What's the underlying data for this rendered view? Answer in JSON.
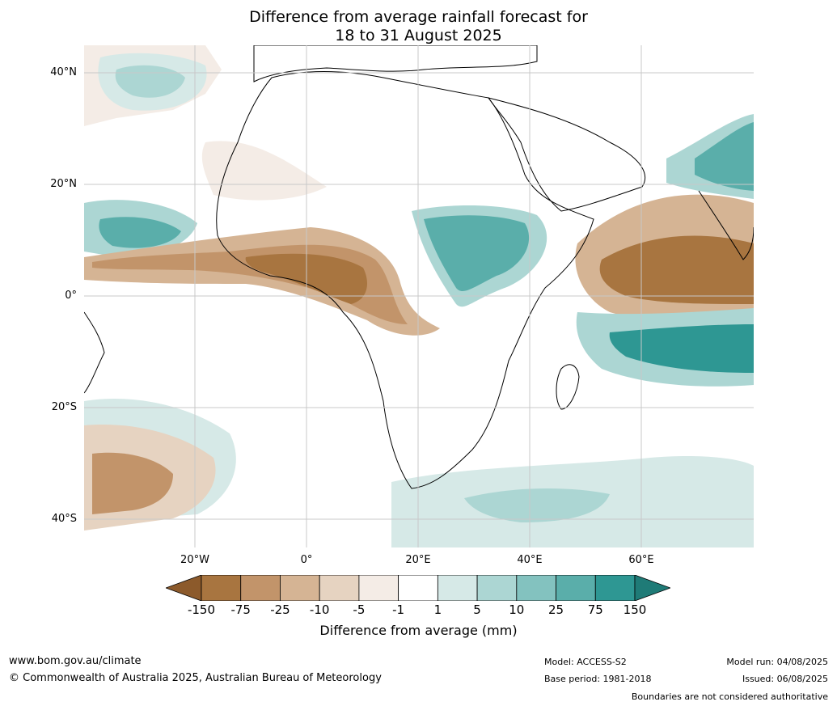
{
  "title_line1": "Difference from average rainfall forecast for",
  "title_line2": "18 to 31 August 2025",
  "map": {
    "lat_labels": [
      "40°N",
      "20°N",
      "0°",
      "20°S",
      "40°S"
    ],
    "lon_labels": [
      "20°W",
      "0°",
      "20°E",
      "40°E",
      "60°E"
    ]
  },
  "colorbar": {
    "ticks": [
      "-150",
      "-75",
      "-25",
      "-10",
      "-5",
      "-1",
      "1",
      "5",
      "10",
      "25",
      "75",
      "150"
    ],
    "colors": [
      "#8c5a2b",
      "#a87540",
      "#c2946a",
      "#d5b494",
      "#e6d3c1",
      "#f4ece6",
      "#ffffff",
      "#d6e9e7",
      "#acd6d3",
      "#83c2bf",
      "#5aaeaa",
      "#2e9793",
      "#1f7b77"
    ],
    "label": "Difference from average (mm)"
  },
  "footer": {
    "website": "www.bom.gov.au/climate",
    "copyright": "© Commonwealth of Australia 2025, Australian Bureau of Meteorology",
    "model": "Model: ACCESS-S2",
    "base_period": "Base period: 1981-2018",
    "model_run": "Model run: 04/08/2025",
    "issued": "Issued: 06/08/2025",
    "disclaimer": "Boundaries are not considered authoritative"
  }
}
